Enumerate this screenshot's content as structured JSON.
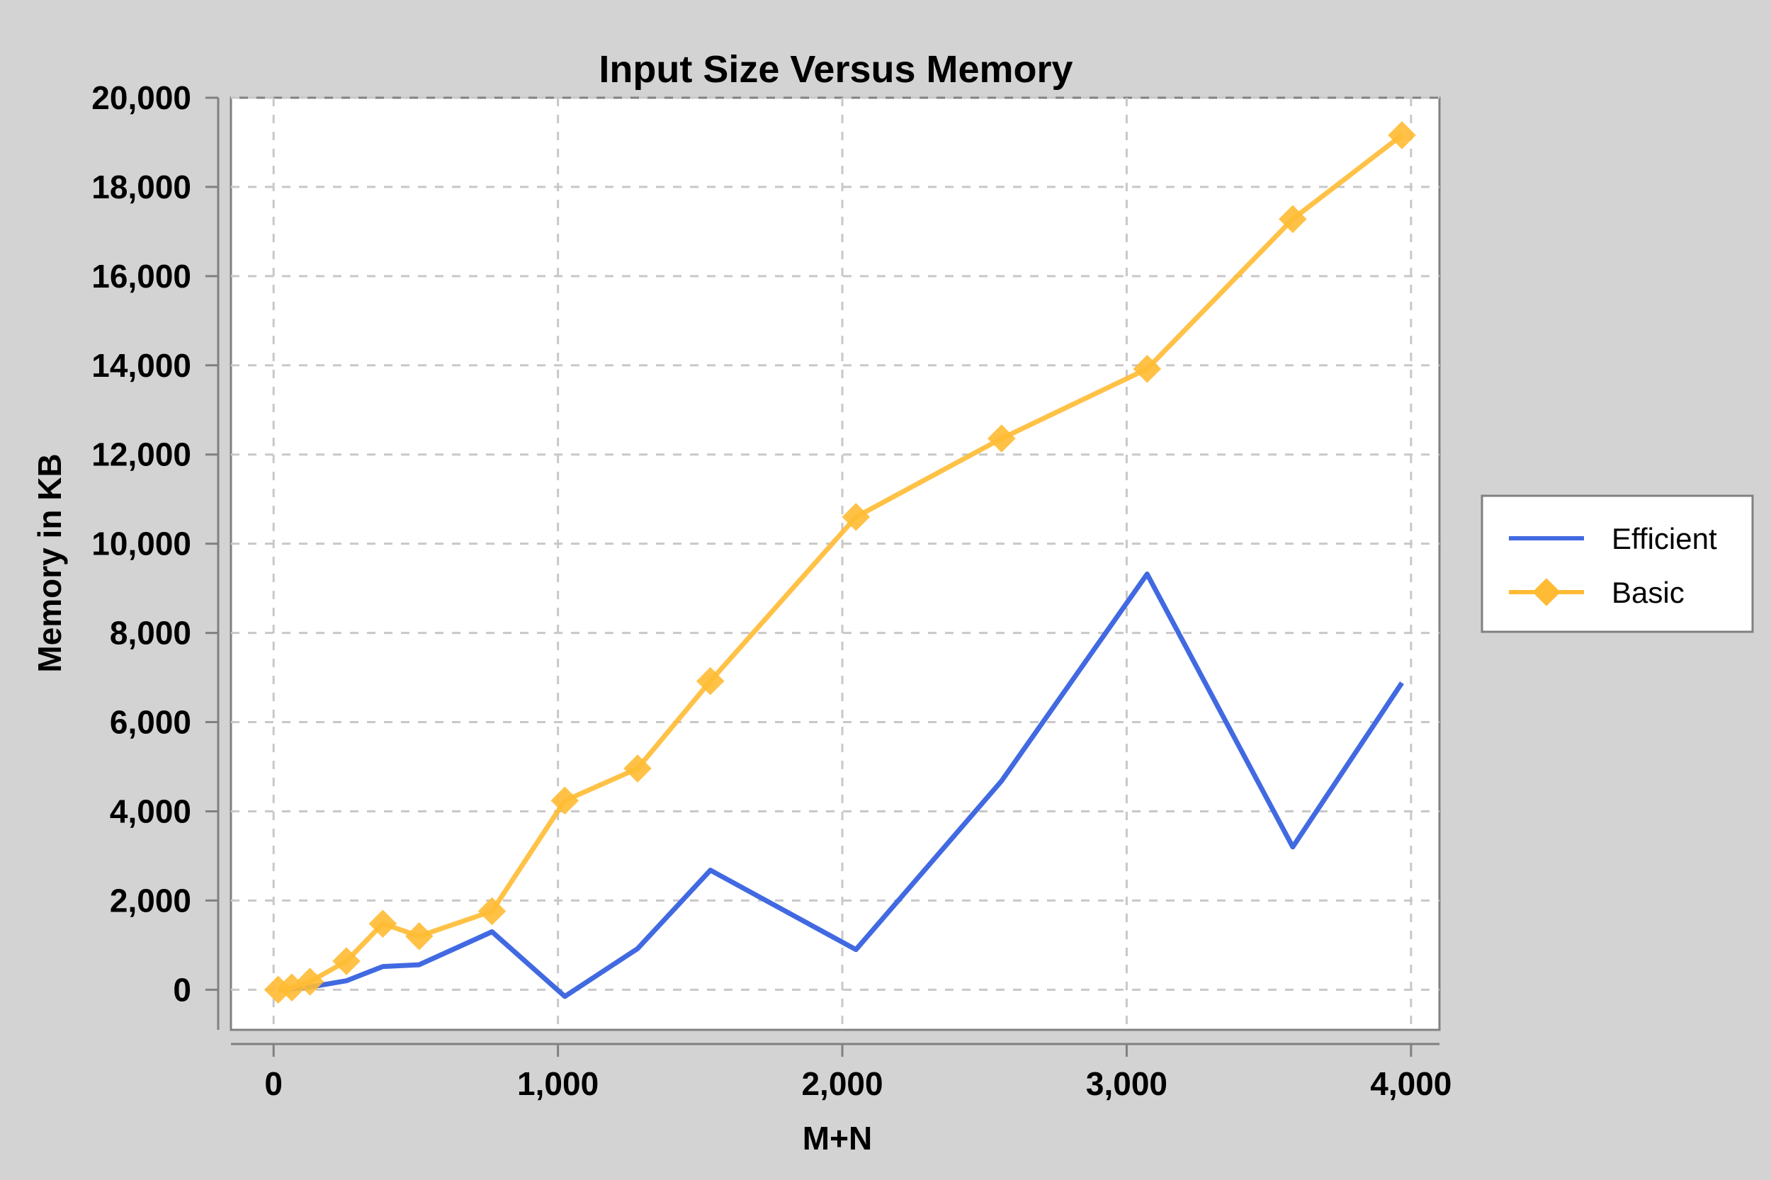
{
  "chart_data": {
    "type": "line",
    "title": "Input Size Versus Memory",
    "xlabel": "M+N",
    "ylabel": "Memory in KB",
    "xlim": [
      -150,
      4100
    ],
    "ylim": [
      -900,
      20000
    ],
    "xticks": [
      0,
      1000,
      2000,
      3000,
      4000
    ],
    "xtick_labels": [
      "0",
      "1,000",
      "2,000",
      "3,000",
      "4,000"
    ],
    "yticks": [
      0,
      2000,
      4000,
      6000,
      8000,
      10000,
      12000,
      14000,
      16000,
      18000,
      20000
    ],
    "ytick_labels": [
      "0",
      "2,000",
      "4,000",
      "6,000",
      "8,000",
      "10,000",
      "12,000",
      "14,000",
      "16,000",
      "18,000",
      "20,000"
    ],
    "grid": true,
    "legend_position": "right",
    "series": [
      {
        "name": "Efficient",
        "color": "#4169e1",
        "marker": "none",
        "x": [
          16,
          64,
          128,
          256,
          384,
          512,
          768,
          1024,
          1280,
          1536,
          2048,
          2560,
          3072,
          3584,
          3968
        ],
        "y": [
          0,
          20,
          60,
          200,
          520,
          560,
          1300,
          -150,
          920,
          2680,
          900,
          4680,
          9320,
          3200,
          6880
        ]
      },
      {
        "name": "Basic",
        "color": "#ffbb33",
        "marker": "diamond",
        "x": [
          16,
          64,
          128,
          256,
          384,
          512,
          768,
          1024,
          1280,
          1536,
          2048,
          2560,
          3072,
          3584,
          3968
        ],
        "y": [
          0,
          50,
          180,
          640,
          1480,
          1200,
          1760,
          4240,
          4960,
          6920,
          10600,
          12360,
          13920,
          17280,
          19160
        ]
      }
    ]
  }
}
